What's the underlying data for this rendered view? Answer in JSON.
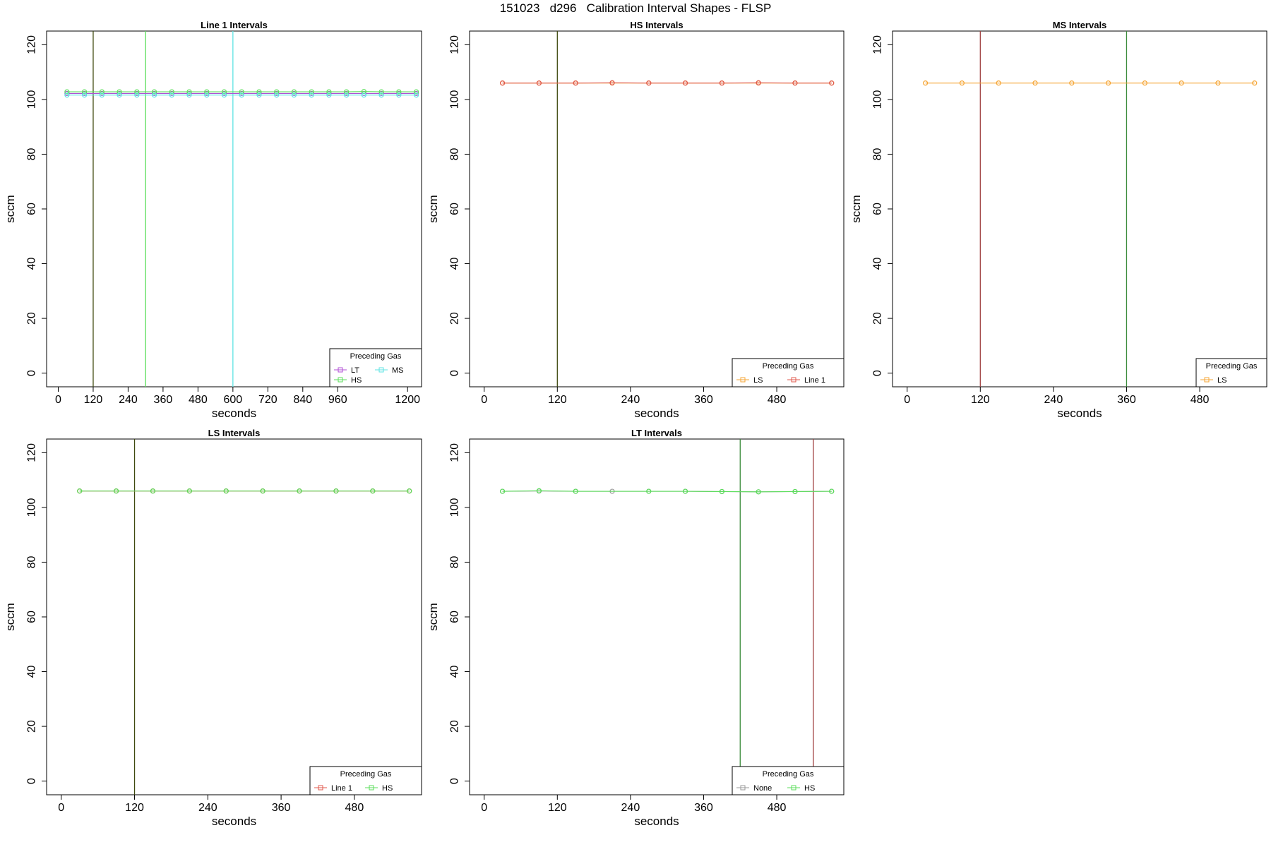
{
  "title": "151023   d296   Calibration Interval Shapes - FLSP",
  "colors": {
    "LT": "#b24fd6",
    "HS": "#5bde5b",
    "MS": "#5ee3e3",
    "LS": "#f6a636",
    "Line 1": "#e05a4e",
    "None": "#9a9a9a",
    "orange_mix": "#e07a1a",
    "dark_olive": "#3f4a10",
    "dark_green": "#3a8a3a",
    "dark_red": "#a04040"
  },
  "chart_data": [
    {
      "type": "line",
      "title": "Line 1 Intervals",
      "xlabel": "seconds",
      "ylabel": "sccm",
      "xlim": [
        -40,
        1248
      ],
      "ylim": [
        -5,
        125
      ],
      "xticks": [
        "0",
        "120",
        "240",
        "360",
        "480",
        "600",
        "720",
        "840",
        "960",
        "1200"
      ],
      "xtick_values": [
        0,
        120,
        240,
        360,
        480,
        600,
        720,
        840,
        960,
        1200
      ],
      "yticks": [
        "0",
        "20",
        "40",
        "60",
        "80",
        "100",
        "120"
      ],
      "grid": false,
      "legend": {
        "title": "Preceding Gas",
        "position": "bottom-right",
        "columns": 2,
        "entries": [
          {
            "label": "LT",
            "color": "#b24fd6"
          },
          {
            "label": "MS",
            "color": "#5ee3e3"
          },
          {
            "label": "HS",
            "color": "#5bde5b"
          }
        ]
      },
      "vlines": [
        {
          "x": 120,
          "color": "#3f4a10"
        },
        {
          "x": 300,
          "color": "#5bde5b"
        },
        {
          "x": 600,
          "color": "#5ee3e3"
        }
      ],
      "series": [
        {
          "color": "#b24fd6",
          "x": [
            30,
            90,
            150,
            210,
            270,
            330,
            390,
            450,
            510,
            570,
            630,
            690,
            750,
            810,
            870,
            930,
            990,
            1050,
            1110,
            1170,
            1230
          ],
          "y": [
            102.2,
            102.2,
            102.2,
            102.2,
            102.2,
            102.2,
            102.2,
            102.2,
            102.2,
            102.2,
            102.2,
            102.2,
            102.2,
            102.2,
            102.2,
            102.2,
            102.2,
            102.2,
            102.2,
            102.2,
            102.2
          ]
        },
        {
          "color": "#5bde5b",
          "x": [
            30,
            90,
            150,
            210,
            270,
            330,
            390,
            450,
            510,
            570,
            630,
            690,
            750,
            810,
            870,
            930,
            990,
            1050,
            1110,
            1170,
            1230
          ],
          "y": [
            102.8,
            102.8,
            102.8,
            102.8,
            102.8,
            102.8,
            102.8,
            102.8,
            102.8,
            102.8,
            102.8,
            102.8,
            102.8,
            102.8,
            102.8,
            102.8,
            102.8,
            102.9,
            102.8,
            102.8,
            102.8
          ]
        },
        {
          "color": "#5ee3e3",
          "x": [
            30,
            90,
            150,
            210,
            270,
            330,
            390,
            450,
            510,
            570,
            630,
            690,
            750,
            810,
            870,
            930,
            990,
            1050,
            1110,
            1170,
            1230
          ],
          "y": [
            101.6,
            101.6,
            101.6,
            101.6,
            101.6,
            101.6,
            101.6,
            101.6,
            101.6,
            101.6,
            101.6,
            101.6,
            101.6,
            101.6,
            101.6,
            101.6,
            101.6,
            101.6,
            101.6,
            101.6,
            101.6
          ]
        }
      ]
    },
    {
      "type": "line",
      "title": "HS Intervals",
      "xlabel": "seconds",
      "ylabel": "sccm",
      "xlim": [
        -24,
        590
      ],
      "ylim": [
        -5,
        125
      ],
      "xticks": [
        "0",
        "120",
        "240",
        "360",
        "480"
      ],
      "xtick_values": [
        0,
        120,
        240,
        360,
        480
      ],
      "yticks": [
        "0",
        "20",
        "40",
        "60",
        "80",
        "100",
        "120"
      ],
      "grid": false,
      "legend": {
        "title": "Preceding Gas",
        "position": "bottom-right",
        "columns": 2,
        "entries": [
          {
            "label": "LS",
            "color": "#f6a636"
          },
          {
            "label": "Line 1",
            "color": "#e05a4e"
          }
        ]
      },
      "vlines": [
        {
          "x": 120,
          "color": "#3f4a10"
        }
      ],
      "series": [
        {
          "color": "#f6a636",
          "x": [
            30,
            90,
            150,
            210,
            270,
            330,
            390,
            450,
            510,
            570
          ],
          "y": [
            106,
            106,
            106,
            106,
            106,
            106,
            106,
            106,
            106,
            106
          ]
        },
        {
          "color": "#e05a4e",
          "x": [
            30,
            90,
            150,
            210,
            270,
            330,
            390,
            450,
            510,
            570
          ],
          "y": [
            106,
            106,
            106,
            106.1,
            106,
            106,
            106,
            106.1,
            106,
            106
          ]
        }
      ]
    },
    {
      "type": "line",
      "title": "MS Intervals",
      "xlabel": "seconds",
      "ylabel": "sccm",
      "xlim": [
        -24,
        590
      ],
      "ylim": [
        -5,
        125
      ],
      "xticks": [
        "0",
        "120",
        "240",
        "360",
        "480"
      ],
      "xtick_values": [
        0,
        120,
        240,
        360,
        480
      ],
      "yticks": [
        "0",
        "20",
        "40",
        "60",
        "80",
        "100",
        "120"
      ],
      "grid": false,
      "legend": {
        "title": "Preceding Gas",
        "position": "bottom-right",
        "columns": 1,
        "entries": [
          {
            "label": "LS",
            "color": "#f6a636"
          }
        ]
      },
      "vlines": [
        {
          "x": 120,
          "color": "#a04040"
        },
        {
          "x": 360,
          "color": "#3a8a3a"
        }
      ],
      "series": [
        {
          "color": "#f6a636",
          "x": [
            30,
            90,
            150,
            210,
            270,
            330,
            390,
            450,
            510,
            570
          ],
          "y": [
            106,
            106,
            106,
            106,
            106,
            106,
            106,
            106,
            106,
            106
          ]
        }
      ]
    },
    {
      "type": "line",
      "title": "LS Intervals",
      "xlabel": "seconds",
      "ylabel": "sccm",
      "xlim": [
        -24,
        590
      ],
      "ylim": [
        -5,
        125
      ],
      "xticks": [
        "0",
        "120",
        "240",
        "360",
        "480"
      ],
      "xtick_values": [
        0,
        120,
        240,
        360,
        480
      ],
      "yticks": [
        "0",
        "20",
        "40",
        "60",
        "80",
        "100",
        "120"
      ],
      "grid": false,
      "legend": {
        "title": "Preceding Gas",
        "position": "bottom-right",
        "columns": 2,
        "entries": [
          {
            "label": "Line 1",
            "color": "#e05a4e"
          },
          {
            "label": "HS",
            "color": "#5bde5b"
          }
        ]
      },
      "vlines": [
        {
          "x": 120,
          "color": "#3f4a10"
        }
      ],
      "series": [
        {
          "color": "#e05a4e",
          "x": [
            30,
            90,
            150,
            210,
            270,
            330,
            390,
            450,
            510,
            570
          ],
          "y": [
            106,
            106,
            106,
            106,
            106,
            106,
            106,
            106,
            106,
            106
          ]
        },
        {
          "color": "#5bde5b",
          "x": [
            30,
            90,
            150,
            210,
            270,
            330,
            390,
            450,
            510,
            570
          ],
          "y": [
            106,
            106,
            106,
            106,
            106,
            106,
            106,
            106,
            106,
            106
          ]
        }
      ]
    },
    {
      "type": "line",
      "title": "LT Intervals",
      "xlabel": "seconds",
      "ylabel": "sccm",
      "xlim": [
        -24,
        590
      ],
      "ylim": [
        -5,
        125
      ],
      "xticks": [
        "0",
        "120",
        "240",
        "360",
        "480"
      ],
      "xtick_values": [
        0,
        120,
        240,
        360,
        480
      ],
      "yticks": [
        "0",
        "20",
        "40",
        "60",
        "80",
        "100",
        "120"
      ],
      "grid": false,
      "legend": {
        "title": "Preceding Gas",
        "position": "bottom-right",
        "columns": 2,
        "entries": [
          {
            "label": "None",
            "color": "#9a9a9a"
          },
          {
            "label": "HS",
            "color": "#5bde5b"
          }
        ]
      },
      "vlines": [
        {
          "x": 420,
          "color": "#3a8a3a"
        },
        {
          "x": 540,
          "color": "#a04040"
        }
      ],
      "series": [
        {
          "color": "#9a9a9a",
          "x": [
            30,
            90,
            150,
            210,
            270,
            330,
            390,
            450,
            510,
            570
          ],
          "y": [
            105.9,
            106,
            105.9,
            105.9,
            105.9,
            105.9,
            105.8,
            105.7,
            105.8,
            105.9
          ]
        },
        {
          "color": "#5bde5b",
          "x": [
            30,
            90,
            150,
            270,
            330,
            390,
            450,
            510,
            570
          ],
          "y": [
            105.9,
            106.1,
            105.9,
            105.9,
            105.9,
            105.8,
            105.7,
            105.8,
            105.9
          ]
        }
      ]
    }
  ]
}
